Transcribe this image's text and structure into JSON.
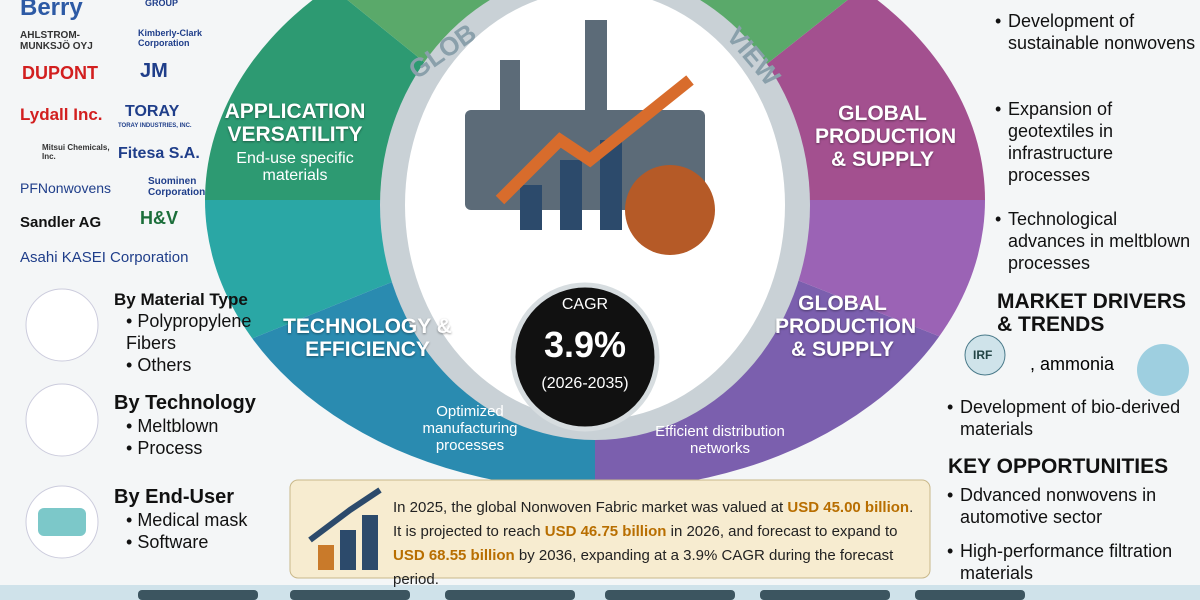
{
  "logos": [
    "Berry",
    "GROUP",
    "AHLSTROM-MUNKSJÖ OYJ",
    "Kimberly-Clark Corporation",
    "DUPONT",
    "JM",
    "Lydall Inc.",
    "TORAY",
    "TORAY INDUSTRIES, INC.",
    "Mitsui Chemicals, Inc.",
    "Fitesa S.A.",
    "PFNonwovens",
    "Suominen Corporation",
    "Sandler AG",
    "H&V",
    "Asahi KASEI Corporation"
  ],
  "segmentation": [
    {
      "title": "By Material Type",
      "items": [
        "Polypropylene Fibers",
        "Others"
      ]
    },
    {
      "title": "By Technology",
      "items": [
        "Meltblown",
        "Process"
      ]
    },
    {
      "title": "By End-User",
      "items": [
        "Medical mask",
        "Software"
      ]
    }
  ],
  "wheel": {
    "title_left": "GLOB",
    "title_right": "VIEW",
    "segments": [
      {
        "title": "APPLICATION VERSATILITY",
        "text": "End-use specific materials"
      },
      {
        "title": "GLOBAL PRODUCTION & SUPPLY"
      },
      {
        "title": "TECHNOLOGY & EFFICIENCY"
      },
      {
        "title": "GLOBAL PRODUCTION & SUPPLY"
      },
      {
        "text": "Optimized manufacturing processes"
      },
      {
        "text": "Efficient distribution networks"
      }
    ],
    "cagr": {
      "label": "CAGR",
      "value": "3.9%",
      "period": "(2026-2035)"
    }
  },
  "trends": [
    "Development of sustainable nonwovens",
    "Expansion of geotextiles in infrastructure processes",
    "Technological advances in meltblown processes"
  ],
  "drivers": {
    "title": "MARKET DRIVERS & TRENDS",
    "icon_label": "IRF",
    "text": ", ammonia",
    "items": [
      "Development of bio-derived materials"
    ]
  },
  "opportunities": {
    "title": "KEY OPPORTUNITIES",
    "items": [
      "Ddvanced nonwovens in automotive sector",
      "High-performance filtration materials"
    ]
  },
  "summary": {
    "parts": [
      {
        "text": "In 2025, the global Nonwoven Fabric market was valued at "
      },
      {
        "text": "USD 45.00 billion",
        "highlight": true
      },
      {
        "text": ". It is projected to reach "
      },
      {
        "text": "USD 46.75 billion",
        "highlight": true
      },
      {
        "text": " in 2026, and forecast to expand to "
      },
      {
        "text": "USD 68.55 billion",
        "highlight": true
      },
      {
        "text": " by 2036, expanding at a 3.9% CAGR during the forecast period."
      }
    ]
  }
}
